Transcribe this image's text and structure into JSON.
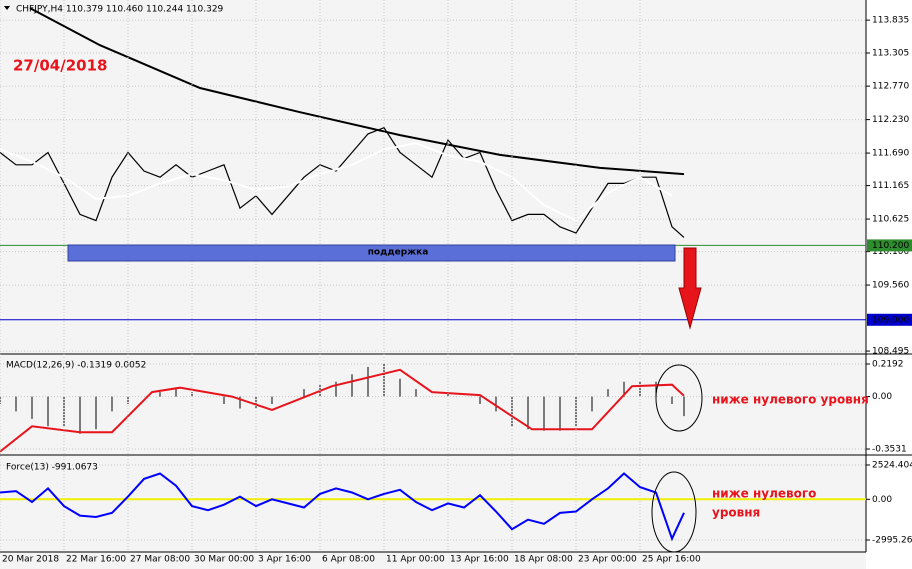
{
  "chart_data": [
    {
      "type": "line",
      "title": "CHFJPY,H4  110.379 110.460 110.244 110.329",
      "annotation": "27/04/2018",
      "support_label": "поддержка",
      "xlim": [
        0,
        216.5
      ],
      "ylim": [
        108.48,
        114.16
      ],
      "yticks": [
        113.835,
        113.305,
        {
          "value": 112.77,
          "label": "112.770"
        },
        {
          "value": 112.23,
          "label": "112.230"
        },
        {
          "value": 111.69,
          "label": "111.690"
        },
        111.165,
        110.625,
        {
          "value": 110.1,
          "label": "110.100"
        },
        {
          "value": 109.56,
          "label": "109.560"
        },
        108.495
      ],
      "levels": [
        {
          "value": 110.2,
          "label": "110.200",
          "color": "#2e8b2e"
        },
        {
          "value": 109,
          "label": "109.000",
          "color": "#0000cc"
        }
      ],
      "series": [
        {
          "color": "#000000",
          "x": [
            0,
            4,
            8,
            12,
            16,
            20,
            24,
            28,
            32,
            36,
            40,
            44,
            48,
            52,
            56,
            60,
            64,
            68,
            72,
            76,
            80,
            84,
            88,
            92,
            96,
            100,
            104,
            108,
            112,
            116,
            120,
            124,
            128,
            132,
            136,
            140,
            144,
            148,
            152,
            156,
            160,
            164,
            168,
            171
          ],
          "values": [
            111.7,
            111.5,
            111.5,
            111.7,
            111.2,
            110.7,
            110.6,
            111.3,
            111.7,
            111.4,
            111.3,
            111.5,
            111.3,
            111.4,
            111.5,
            110.8,
            111.0,
            110.7,
            111.0,
            111.3,
            111.5,
            111.4,
            111.7,
            112.0,
            112.1,
            111.7,
            111.5,
            111.3,
            111.9,
            111.6,
            111.7,
            111.1,
            110.6,
            110.7,
            110.7,
            110.5,
            110.4,
            110.8,
            111.2,
            111.2,
            111.3,
            111.3,
            110.5,
            110.329
          ]
        },
        {
          "color": "#ffffff",
          "x": [
            0,
            8,
            16,
            24,
            32,
            40,
            48,
            56,
            64,
            72,
            80,
            88,
            96,
            104,
            112,
            120,
            128,
            136,
            144,
            152,
            160,
            168
          ],
          "values": [
            111.75,
            111.55,
            111.3,
            110.95,
            111.0,
            111.2,
            111.35,
            111.25,
            111.1,
            111.15,
            111.35,
            111.5,
            111.75,
            111.85,
            111.65,
            111.55,
            111.3,
            110.85,
            110.6,
            111.05,
            111.3,
            111.0
          ]
        },
        {
          "color": "#000000",
          "x": [
            7.5,
            25,
            50,
            75,
            100,
            125,
            150,
            171
          ],
          "values": [
            114.03,
            113.43,
            112.74,
            112.35,
            111.98,
            111.66,
            111.45,
            111.35
          ]
        }
      ]
    },
    {
      "type": "line",
      "title": "MACD(12,26,9) -0.1319 0.0052",
      "annotation": "ниже нулевого уровня",
      "xlim": [
        0,
        216.5
      ],
      "ylim": [
        -0.373,
        0.273
      ],
      "yticks": [
        0.2192,
        {
          "value": 0,
          "label": "0.00"
        },
        -0.3531
      ],
      "series": [
        {
          "type": "bar",
          "color": "#000000",
          "x": [
            0,
            4,
            8,
            12,
            16,
            20,
            24,
            28,
            32,
            36,
            40,
            44,
            48,
            52,
            56,
            60,
            64,
            68,
            72,
            76,
            80,
            84,
            88,
            92,
            96,
            100,
            104,
            108,
            112,
            116,
            120,
            124,
            128,
            132,
            136,
            140,
            144,
            148,
            152,
            156,
            160,
            164,
            168,
            171
          ],
          "values": [
            -0.05,
            -0.1,
            -0.15,
            -0.2,
            -0.2,
            -0.25,
            -0.22,
            -0.1,
            -0.05,
            0.0,
            0.03,
            0.05,
            0.03,
            0.0,
            -0.05,
            -0.08,
            -0.08,
            -0.05,
            0.0,
            0.05,
            0.08,
            0.1,
            0.15,
            0.2,
            0.22,
            0.12,
            0.05,
            0.0,
            0.02,
            0.0,
            -0.05,
            -0.1,
            -0.2,
            -0.22,
            -0.23,
            -0.23,
            -0.2,
            -0.1,
            0.05,
            0.1,
            0.1,
            0.1,
            -0.05,
            -0.1319
          ]
        },
        {
          "color": "#e8141c",
          "x": [
            0,
            8,
            20,
            28,
            38,
            45,
            58,
            68,
            83,
            100,
            108,
            120,
            133,
            148,
            158,
            168,
            171
          ],
          "values": [
            -0.37,
            -0.2,
            -0.24,
            -0.24,
            0.03,
            0.06,
            0.0,
            -0.09,
            0.07,
            0.18,
            0.03,
            0.01,
            -0.22,
            -0.22,
            0.07,
            0.08,
            0.0052
          ]
        }
      ]
    },
    {
      "type": "line",
      "title": "Force(13) -991.0673",
      "annotation": [
        "ниже нулевого",
        "уровня"
      ],
      "xlim": [
        0,
        216.5
      ],
      "ylim": [
        -3878,
        3039
      ],
      "yticks": [
        {
          "value": 2524.404,
          "label": "2524.404"
        },
        {
          "value": 0,
          "label": "0.00"
        },
        {
          "value": -2995.265,
          "label": "-2995.265"
        }
      ],
      "levels": [
        {
          "value": 0,
          "color": "#f0f000"
        }
      ],
      "xticks": [
        {
          "value": 0,
          "label": "20 Mar 2018"
        },
        {
          "value": 16,
          "label": "22 Mar 16:00"
        },
        {
          "value": 32,
          "label": "27 Mar 08:00"
        },
        {
          "value": 48,
          "label": "30 Mar 00:00"
        },
        {
          "value": 64,
          "label": "3 Apr 16:00"
        },
        {
          "value": 80,
          "label": "6 Apr 08:00"
        },
        {
          "value": 96,
          "label": "11 Apr 00:00"
        },
        {
          "value": 112,
          "label": "13 Apr 16:00"
        },
        {
          "value": 128,
          "label": "18 Apr 08:00"
        },
        {
          "value": 144,
          "label": "23 Apr 00:00"
        },
        {
          "value": 160,
          "label": "25 Apr 16:00"
        }
      ],
      "series": [
        {
          "color": "#0000ff",
          "x": [
            0,
            4,
            8,
            12,
            16,
            20,
            24,
            28,
            32,
            36,
            40,
            44,
            48,
            52,
            56,
            60,
            64,
            68,
            72,
            76,
            80,
            84,
            88,
            92,
            96,
            100,
            104,
            108,
            112,
            116,
            120,
            124,
            128,
            132,
            136,
            140,
            144,
            148,
            152,
            156,
            160,
            164,
            168,
            171
          ],
          "values": [
            500,
            600,
            -200,
            800,
            -500,
            -1200,
            -1300,
            -1000,
            200,
            1500,
            1900,
            1000,
            -500,
            -800,
            -400,
            200,
            -500,
            0,
            -300,
            -600,
            400,
            800,
            500,
            0,
            400,
            700,
            -200,
            -800,
            -300,
            -600,
            300,
            -900,
            -2200,
            -1500,
            -1800,
            -1000,
            -900,
            0,
            800,
            1900,
            900,
            500,
            -2900,
            -991.0673
          ]
        }
      ]
    }
  ]
}
